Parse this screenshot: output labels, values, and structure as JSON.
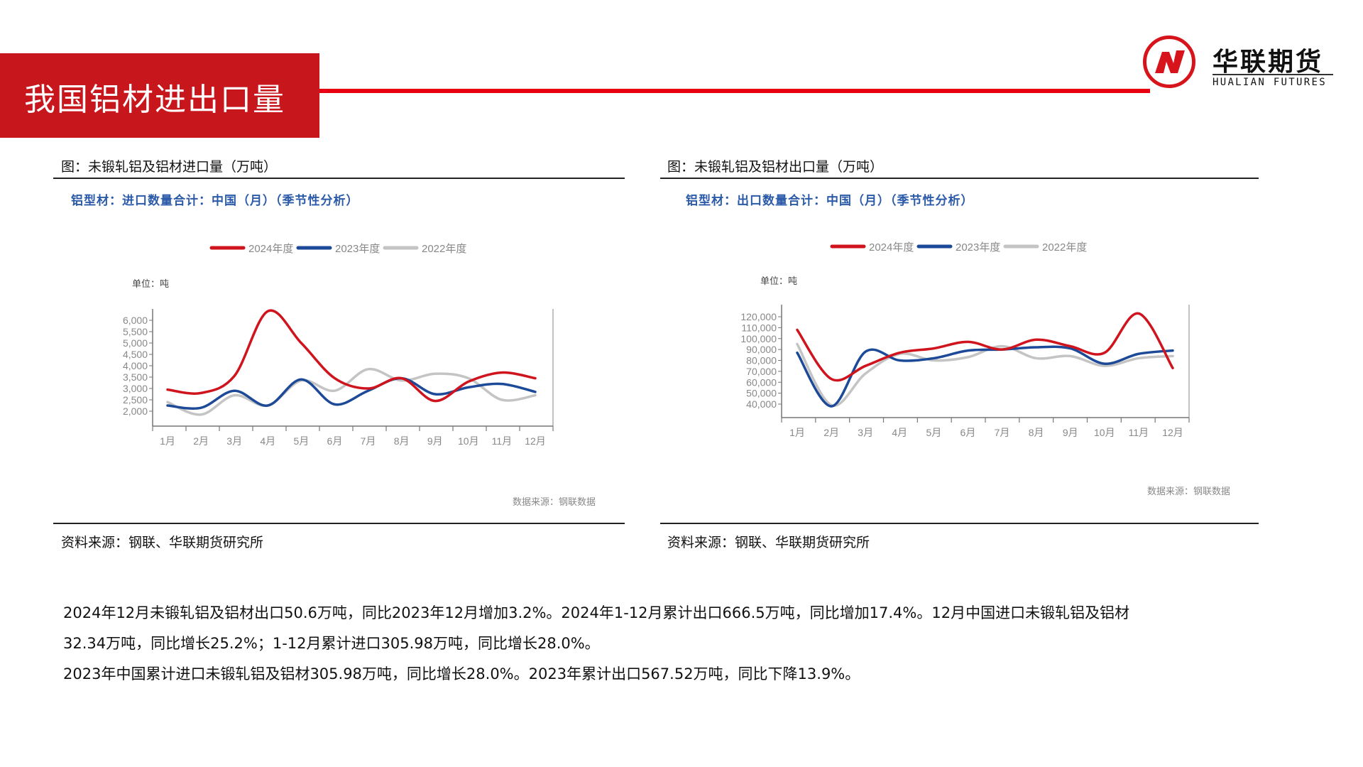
{
  "header": {
    "title": "我国铝材进出口量"
  },
  "logo": {
    "cn": "华联期货",
    "en": "HUALIAN FUTURES"
  },
  "left_panel": {
    "caption": "图：未锻轧铝及铝材进口量（万吨）",
    "subtitle": "铝型材：进口数量合计：中国（月）（季节性分析）",
    "unit": "单位：吨",
    "data_source": "数据来源：钢联数据",
    "source": "资料来源：钢联、华联期货研究所"
  },
  "right_panel": {
    "caption": "图：未锻轧铝及铝材出口量（万吨）",
    "subtitle": "铝型材：出口数量合计：中国（月）（季节性分析）",
    "unit": "单位：吨",
    "data_source": "数据来源：钢联数据",
    "source": "资料来源：钢联、华联期货研究所"
  },
  "paragraphs": [
    "2024年12月未锻轧铝及铝材出口50.6万吨，同比2023年12月增加3.2%。2024年1-12月累计出口666.5万吨，同比增加17.4%。12月中国进口未锻轧铝及铝材",
    "32.34万吨，同比增长25.2%；1-12月累计进口305.98万吨，同比增长28.0%。",
    "2023年中国累计进口未锻轧铝及铝材305.98万吨，同比增长28.0%。2023年累计出口567.52万吨，同比下降13.9%。"
  ],
  "colors": {
    "brand_red": "#c8161d",
    "s2024": "#d0141e",
    "s2023": "#1d4a98",
    "s2022": "#c4c4c4"
  },
  "chart_data": [
    {
      "type": "line",
      "title": "铝型材：进口数量合计：中国（月）（季节性分析）",
      "ylabel": "单位：吨",
      "categories": [
        "1月",
        "2月",
        "3月",
        "4月",
        "5月",
        "6月",
        "7月",
        "8月",
        "9月",
        "10月",
        "11月",
        "12月"
      ],
      "yticks": [
        "2,000",
        "2,500",
        "3,000",
        "3,500",
        "4,000",
        "4,500",
        "5,000",
        "5,500",
        "6,000"
      ],
      "ylim": [
        2000,
        6000
      ],
      "legend_position": "top",
      "series": [
        {
          "name": "2024年度",
          "color": "#d0141e",
          "values": [
            2950,
            2800,
            3550,
            6400,
            5000,
            3450,
            3000,
            3450,
            2450,
            3300,
            3700,
            3450
          ]
        },
        {
          "name": "2023年度",
          "color": "#1d4a98",
          "values": [
            2250,
            2150,
            2900,
            2250,
            3400,
            2300,
            2900,
            3450,
            2750,
            3050,
            3200,
            2850
          ]
        },
        {
          "name": "2022年度",
          "color": "#c4c4c4",
          "values": [
            2400,
            1850,
            2700,
            2250,
            3350,
            2900,
            3850,
            3350,
            3650,
            3450,
            2500,
            2700
          ]
        }
      ]
    },
    {
      "type": "line",
      "title": "铝型材：出口数量合计：中国（月）（季节性分析）",
      "ylabel": "单位：吨",
      "categories": [
        "1月",
        "2月",
        "3月",
        "4月",
        "5月",
        "6月",
        "7月",
        "8月",
        "9月",
        "10月",
        "11月",
        "12月"
      ],
      "yticks": [
        "40,000",
        "50,000",
        "60,000",
        "70,000",
        "80,000",
        "90,000",
        "100,000",
        "110,000",
        "120,000"
      ],
      "ylim": [
        40000,
        120000
      ],
      "legend_position": "top",
      "series": [
        {
          "name": "2024年度",
          "color": "#d0141e",
          "values": [
            108000,
            63000,
            75000,
            87000,
            91000,
            97000,
            90000,
            99000,
            93000,
            87000,
            123000,
            73000
          ]
        },
        {
          "name": "2023年度",
          "color": "#1d4a98",
          "values": [
            87000,
            38000,
            88000,
            80000,
            82000,
            89000,
            90000,
            92000,
            91000,
            77000,
            86000,
            89000
          ]
        },
        {
          "name": "2022年度",
          "color": "#c4c4c4",
          "values": [
            95000,
            39000,
            68000,
            86000,
            80000,
            83000,
            93000,
            82000,
            84000,
            75000,
            82000,
            84000
          ]
        }
      ]
    }
  ]
}
